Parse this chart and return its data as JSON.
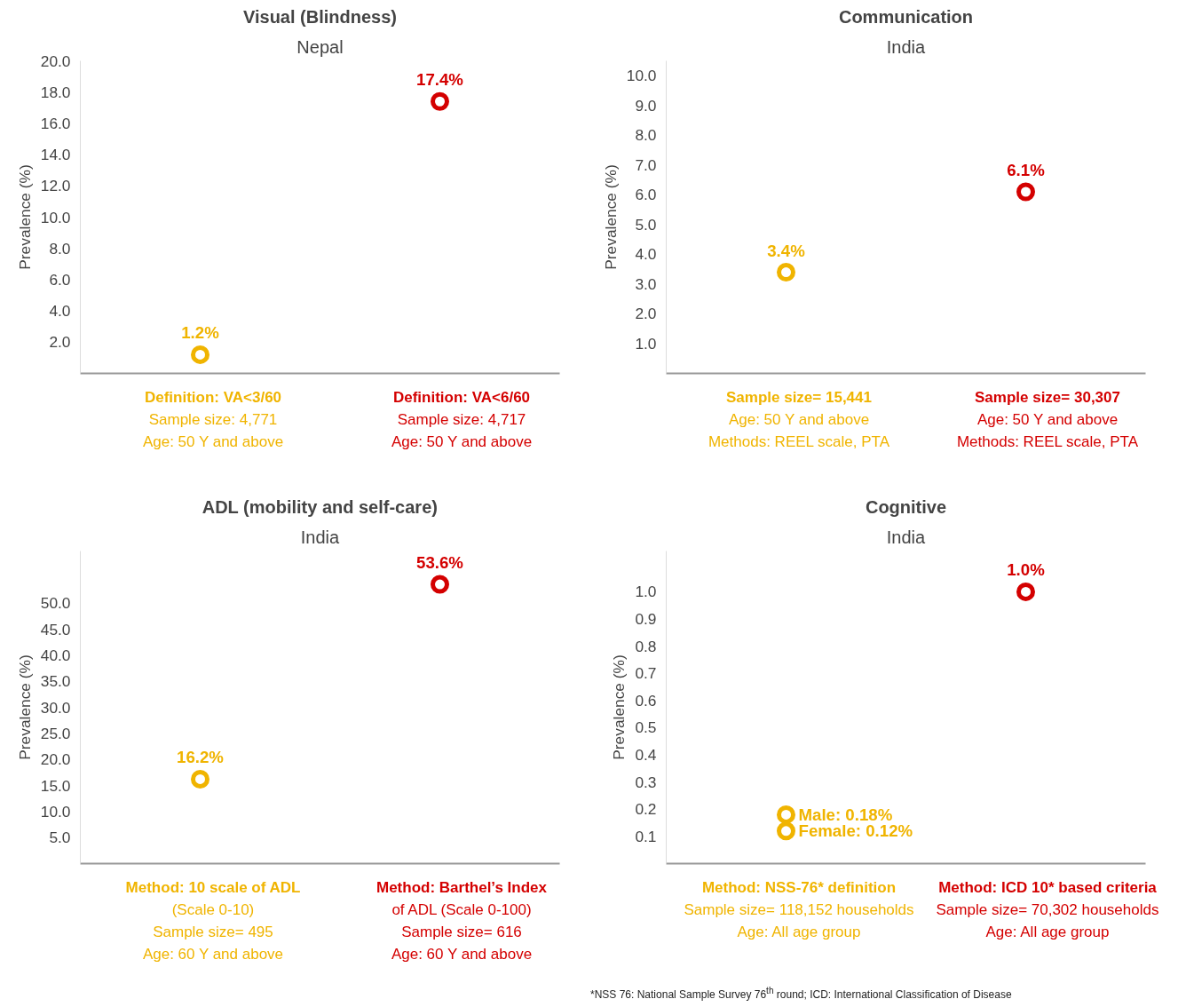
{
  "chart_data": [
    {
      "type": "scatter",
      "title": "Visual (Blindness)",
      "subtitle": "Nepal",
      "ylabel": "Prevalence (%)",
      "categories": [
        "Definition: VA<3/60\nSample size: 4,771\nAge: 50 Y and above",
        "Definition: VA<6/60\nSample size: 4,717\nAge: 50 Y and above"
      ],
      "ylim": [
        0,
        20
      ],
      "yticks": [
        {
          "value": 2,
          "label": "2.0"
        },
        {
          "value": 4,
          "label": "4.0"
        },
        {
          "value": 6,
          "label": "6.0"
        },
        {
          "value": 8,
          "label": "8.0"
        },
        {
          "value": 10,
          "label": "10.0"
        },
        {
          "value": 12,
          "label": "12.0"
        },
        {
          "value": 14,
          "label": "14.0"
        },
        {
          "value": 16,
          "label": "16.0"
        },
        {
          "value": 18,
          "label": "18.0"
        },
        {
          "value": 20,
          "label": "20.0"
        }
      ],
      "marker": "circle",
      "grid": false,
      "series": [
        {
          "color": "#f0b400",
          "values": [
            1.2,
            null
          ],
          "value_labels": [
            "1.2%",
            null
          ]
        },
        {
          "color": "#d40000",
          "values": [
            null,
            17.4
          ],
          "value_labels": [
            null,
            "17.4%"
          ]
        }
      ]
    },
    {
      "type": "scatter",
      "title": "Communication",
      "subtitle": "India",
      "ylabel": "Prevalence (%)",
      "categories": [
        "Sample size= 15,441\nAge: 50 Y and above\nMethods: REEL scale, PTA",
        "Sample size= 30,307\nAge: 50 Y and above\nMethods: REEL scale, PTA"
      ],
      "ylim": [
        0,
        10.5
      ],
      "yticks": [
        {
          "value": 1,
          "label": "1.0"
        },
        {
          "value": 2,
          "label": "2.0"
        },
        {
          "value": 3,
          "label": "3.0"
        },
        {
          "value": 4,
          "label": "4.0"
        },
        {
          "value": 5,
          "label": "5.0"
        },
        {
          "value": 6,
          "label": "6.0"
        },
        {
          "value": 7,
          "label": "7.0"
        },
        {
          "value": 8,
          "label": "8.0"
        },
        {
          "value": 9,
          "label": "9.0"
        },
        {
          "value": 10,
          "label": "10.0"
        }
      ],
      "marker": "circle",
      "grid": false,
      "series": [
        {
          "color": "#f0b400",
          "values": [
            3.4,
            null
          ],
          "value_labels": [
            "3.4%",
            null
          ]
        },
        {
          "color": "#d40000",
          "values": [
            null,
            6.1
          ],
          "value_labels": [
            null,
            "6.1%"
          ]
        }
      ]
    },
    {
      "type": "scatter",
      "title": "ADL (mobility and self-care)",
      "subtitle": "India",
      "ylabel": "Prevalence (%)",
      "categories": [
        "Method: 10 scale of ADL\n(Scale 0-10)\nSample size= 495\nAge: 60 Y and above",
        "Method: Barthel’s Index\nof ADL (Scale 0-100)\nSample size= 616\nAge: 60 Y and above"
      ],
      "ylim": [
        0,
        60
      ],
      "yticks": [
        {
          "value": 5,
          "label": "5.0"
        },
        {
          "value": 10,
          "label": "10.0"
        },
        {
          "value": 15,
          "label": "15.0"
        },
        {
          "value": 20,
          "label": "20.0"
        },
        {
          "value": 25,
          "label": "25.0"
        },
        {
          "value": 30,
          "label": "30.0"
        },
        {
          "value": 35,
          "label": "35.0"
        },
        {
          "value": 40,
          "label": "40.0"
        },
        {
          "value": 45,
          "label": "45.0"
        },
        {
          "value": 50,
          "label": "50.0"
        }
      ],
      "marker": "circle",
      "grid": false,
      "series": [
        {
          "color": "#f0b400",
          "values": [
            16.2,
            null
          ],
          "value_labels": [
            "16.2%",
            null
          ]
        },
        {
          "color": "#d40000",
          "values": [
            null,
            53.6
          ],
          "value_labels": [
            null,
            "53.6%"
          ]
        }
      ]
    },
    {
      "type": "scatter",
      "title": "Cognitive",
      "subtitle": "India",
      "ylabel": "Prevalence (%)",
      "categories": [
        "Method: NSS-76* definition\nSample size= 118,152 households\nAge: All age group",
        "Method: ICD 10* based criteria\nSample size= 70,302 households\nAge: All age group"
      ],
      "ylim": [
        0,
        1.15
      ],
      "yticks": [
        {
          "value": 0.1,
          "label": "0.1"
        },
        {
          "value": 0.2,
          "label": "0.2"
        },
        {
          "value": 0.3,
          "label": "0.3"
        },
        {
          "value": 0.4,
          "label": "0.4"
        },
        {
          "value": 0.5,
          "label": "0.5"
        },
        {
          "value": 0.6,
          "label": "0.6"
        },
        {
          "value": 0.7,
          "label": "0.7"
        },
        {
          "value": 0.8,
          "label": "0.8"
        },
        {
          "value": 0.9,
          "label": "0.9"
        },
        {
          "value": 1.0,
          "label": "1.0"
        }
      ],
      "marker": "circle",
      "grid": false,
      "annotations": [
        "*NSS 76: National Sample Survey 76$^{th}$ round; ICD: International Classification of Disease"
      ],
      "series": [
        {
          "color": "#f0b400",
          "values": [
            0.18,
            null
          ],
          "value_labels": [
            "Male: 0.18%",
            null
          ]
        },
        {
          "color": "#f0b400",
          "values": [
            0.12,
            null
          ],
          "value_labels": [
            "Female: 0.12%",
            null
          ]
        },
        {
          "color": "#d40000",
          "values": [
            null,
            1.0
          ],
          "value_labels": [
            null,
            "1.0%"
          ]
        }
      ]
    }
  ]
}
